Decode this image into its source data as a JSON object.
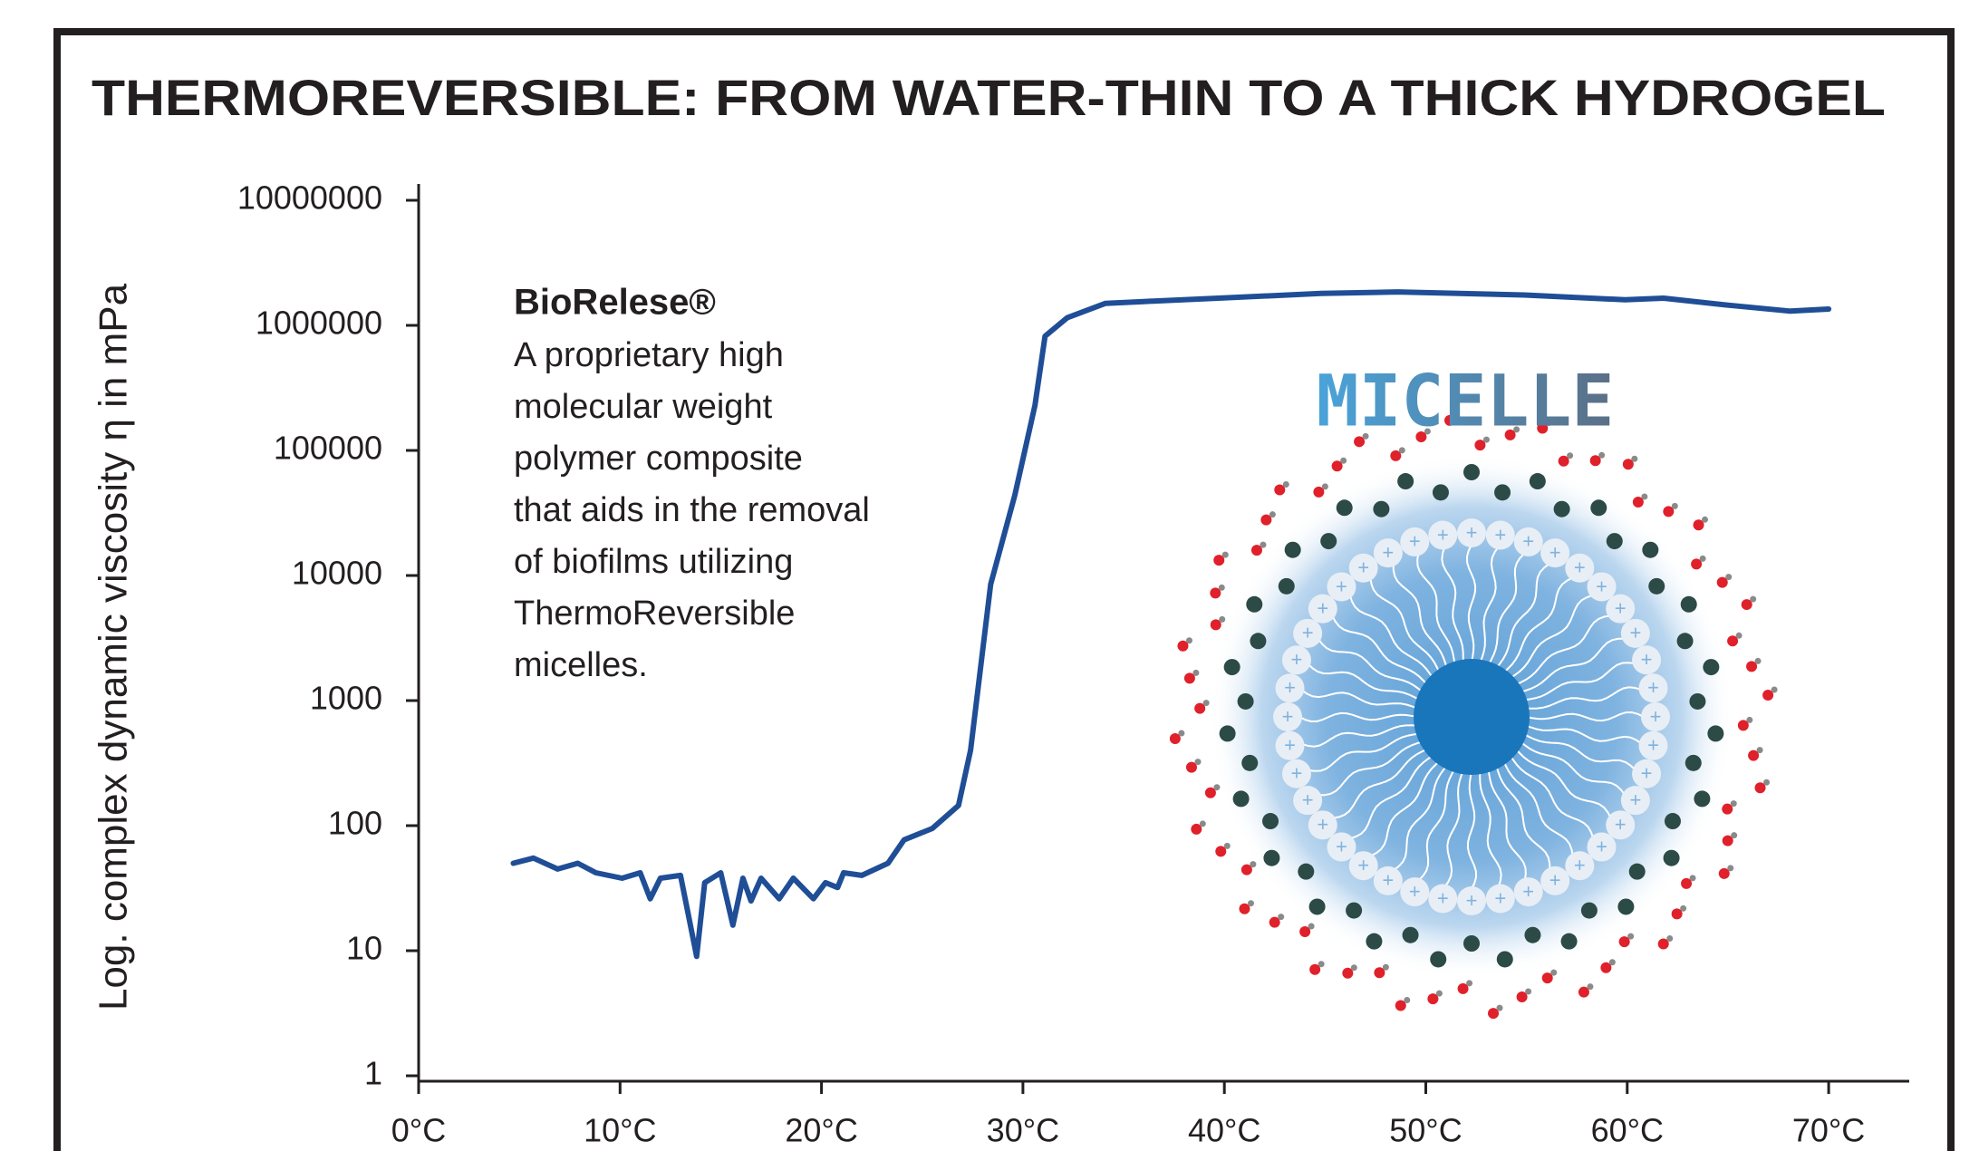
{
  "chart_data": {
    "type": "line",
    "title": "THERMOREVERSIBLE: FROM WATER-THIN TO A THICK HYDROGEL",
    "y_label": "Log. complex dynamic viscosity η in mPa",
    "log_scale_y": true,
    "xlim": [
      0,
      74
    ],
    "xticks": [
      {
        "value": 0,
        "label": "0°C"
      },
      {
        "value": 10,
        "label": "10°C"
      },
      {
        "value": 20,
        "label": "20°C"
      },
      {
        "value": 30,
        "label": "30°C"
      },
      {
        "value": 40,
        "label": "40°C"
      },
      {
        "value": 50,
        "label": "50°C"
      },
      {
        "value": 60,
        "label": "60°C"
      },
      {
        "value": 70,
        "label": "70°C"
      }
    ],
    "ylim": [
      1,
      10000000
    ],
    "yticks": [
      1,
      10,
      100,
      1000,
      10000,
      100000,
      1000000,
      10000000
    ],
    "series": [
      {
        "color": "#1f4e96",
        "x": [
          4.7,
          5.7,
          6.9,
          7.9,
          8.8,
          10.1,
          11.0,
          11.5,
          12.0,
          13.0,
          13.8,
          14.2,
          15.0,
          15.6,
          16.1,
          16.5,
          17.0,
          17.9,
          18.6,
          19.6,
          20.2,
          20.8,
          21.1,
          22.0,
          23.3,
          24.1,
          25.5,
          26.8,
          27.4,
          28.4,
          29.6,
          30.6,
          31.1,
          32.2,
          34.1,
          36.0,
          39.7,
          44.8,
          48.6,
          54.9,
          59.9,
          61.8,
          65.0,
          68.1,
          70.0
        ],
        "values": [
          50,
          55,
          45,
          50,
          42,
          38,
          42,
          26,
          38,
          40,
          9,
          35,
          42,
          16,
          38,
          25,
          38,
          26,
          38,
          26,
          35,
          32,
          42,
          40,
          50,
          77,
          95,
          145,
          400,
          8500,
          44000,
          230000,
          820000,
          1150000,
          1500000,
          1550000,
          1650000,
          1800000,
          1850000,
          1750000,
          1600000,
          1650000,
          1450000,
          1300000,
          1350000
        ]
      }
    ],
    "annotation": {
      "heading": "BioRelese®",
      "lines": [
        "A proprietary high",
        "molecular weight",
        "polymer composite",
        "that aids in the removal",
        "of biofilms utilizing",
        "ThermoReversible",
        "micelles."
      ]
    },
    "illustration_label": "MICELLE"
  }
}
